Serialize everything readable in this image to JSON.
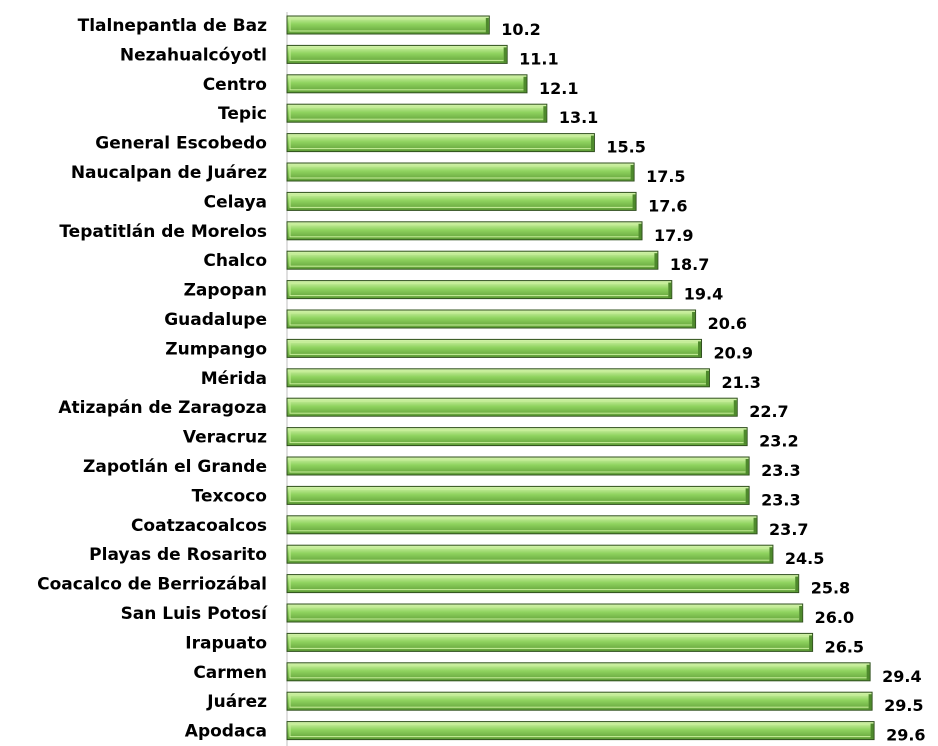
{
  "chart_data": {
    "type": "bar",
    "orientation": "horizontal",
    "categories": [
      "Tlalnepantla de Baz",
      "Nezahualcóyotl",
      "Centro",
      "Tepic",
      "General Escobedo",
      "Naucalpan de Juárez",
      "Celaya",
      "Tepatitlán de Morelos",
      "Chalco",
      "Zapopan",
      "Guadalupe",
      "Zumpango",
      "Mérida",
      "Atizapán de Zaragoza",
      "Veracruz",
      "Zapotlán el Grande",
      "Texcoco",
      "Coatzacoalcos",
      "Playas de Rosarito",
      "Coacalco de Berriozábal",
      "San Luis Potosí",
      "Irapuato",
      "Carmen",
      "Juárez",
      "Apodaca"
    ],
    "values": [
      10.2,
      11.1,
      12.1,
      13.1,
      15.5,
      17.5,
      17.6,
      17.9,
      18.7,
      19.4,
      20.6,
      20.9,
      21.3,
      22.7,
      23.2,
      23.3,
      23.3,
      23.7,
      24.5,
      25.8,
      26.0,
      26.5,
      29.4,
      29.5,
      29.6
    ],
    "value_labels": [
      "10.2",
      "11.1",
      "12.1",
      "13.1",
      "15.5",
      "17.5",
      "17.6",
      "17.9",
      "18.7",
      "19.4",
      "20.6",
      "20.9",
      "21.3",
      "22.7",
      "23.2",
      "23.3",
      "23.3",
      "23.7",
      "24.5",
      "25.8",
      "26.0",
      "26.5",
      "29.4",
      "29.5",
      "29.6"
    ],
    "xlim": [
      0,
      30
    ],
    "grid": false,
    "colors": {
      "bar_fill": "#8fd35f",
      "bar_highlight": "#c8ef9a",
      "bar_shadow": "#4e8a2c",
      "bar_outline": "#2f4f1d"
    }
  }
}
